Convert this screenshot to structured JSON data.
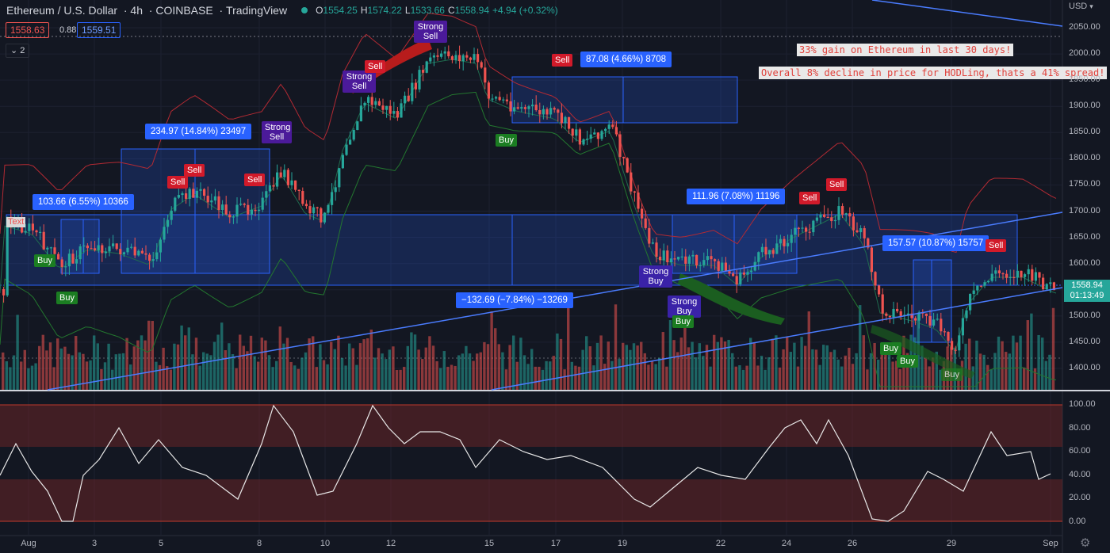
{
  "header": {
    "symbol": "Ethereum / U.S. Dollar",
    "interval": "4h",
    "exchange": "COINBASE",
    "platform": "TradingView",
    "open_label": "O",
    "open": "1554.25",
    "high_label": "H",
    "high": "1574.22",
    "low_label": "L",
    "low": "1533.66",
    "close_label": "C",
    "close": "1558.94",
    "change": "+4.94 (+0.32%)",
    "status_color": "#26a69a"
  },
  "quote": {
    "bid": "1558.63",
    "spread": "0.88",
    "ask": "1559.51"
  },
  "indicator_toggle": {
    "icon": "chevron-down-icon",
    "label": "2"
  },
  "price_axis": {
    "currency": "USD",
    "currency_icon": "chevron-down-icon",
    "ticks": [
      "2050.00",
      "2000.00",
      "1950.00",
      "1900.00",
      "1850.00",
      "1800.00",
      "1750.00",
      "1700.00",
      "1650.00",
      "1600.00",
      "1550.00",
      "1500.00",
      "1450.00",
      "1400.00"
    ],
    "last_price": "1558.94",
    "countdown": "01:13:49",
    "last_price_color": "#26a69a"
  },
  "oscillator_axis": {
    "ticks": [
      "100.00",
      "80.00",
      "60.00",
      "40.00",
      "20.00",
      "0.00"
    ]
  },
  "time_axis": {
    "ticks": [
      "Aug",
      "3",
      "5",
      "8",
      "10",
      "12",
      "15",
      "17",
      "19",
      "22",
      "24",
      "26",
      "29",
      "Sep"
    ]
  },
  "settings_icon": "gear-icon",
  "signals": [
    {
      "type": "buy",
      "label": "Buy"
    },
    {
      "type": "buy",
      "label": "Buy"
    },
    {
      "type": "sell",
      "label": "Sell"
    },
    {
      "type": "sell",
      "label": "Sell"
    },
    {
      "type": "sell",
      "label": "Sell"
    },
    {
      "type": "strong_sell",
      "label": "Strong Sell"
    },
    {
      "type": "strong_sell",
      "label": "Strong Sell"
    },
    {
      "type": "sell",
      "label": "Sell"
    },
    {
      "type": "strong_sell",
      "label": "Strong Sell"
    },
    {
      "type": "sell",
      "label": "Sell"
    },
    {
      "type": "buy",
      "label": "Buy"
    },
    {
      "type": "strong_buy",
      "label": "Strong Buy"
    },
    {
      "type": "strong_buy",
      "label": "Strong Buy"
    },
    {
      "type": "buy",
      "label": "Buy"
    },
    {
      "type": "sell",
      "label": "Sell"
    },
    {
      "type": "sell",
      "label": "Sell"
    },
    {
      "type": "sell",
      "label": "Sell"
    },
    {
      "type": "buy",
      "label": "Buy"
    },
    {
      "type": "buy",
      "label": "Buy"
    },
    {
      "type": "buy",
      "label": "Buy"
    }
  ],
  "measurements": [
    {
      "label": "103.66 (6.55%) 10366"
    },
    {
      "label": "234.97 (14.84%) 23497"
    },
    {
      "label": "87.08 (4.66%) 8708"
    },
    {
      "label": "−132.69 (−7.84%) −13269"
    },
    {
      "label": "111.96 (7.08%) 11196"
    },
    {
      "label": "157.57 (10.87%) 15757"
    }
  ],
  "notes": [
    {
      "text": "33% gain on Ethereum in last 30 days!"
    },
    {
      "text": "Overall 8% decline in price for HODLing, thats a 41% spread!"
    }
  ],
  "text_tag": "Text",
  "colors": {
    "up": "#26a69a",
    "down": "#ef5350",
    "accent": "#2962ff",
    "background": "#131722"
  }
}
